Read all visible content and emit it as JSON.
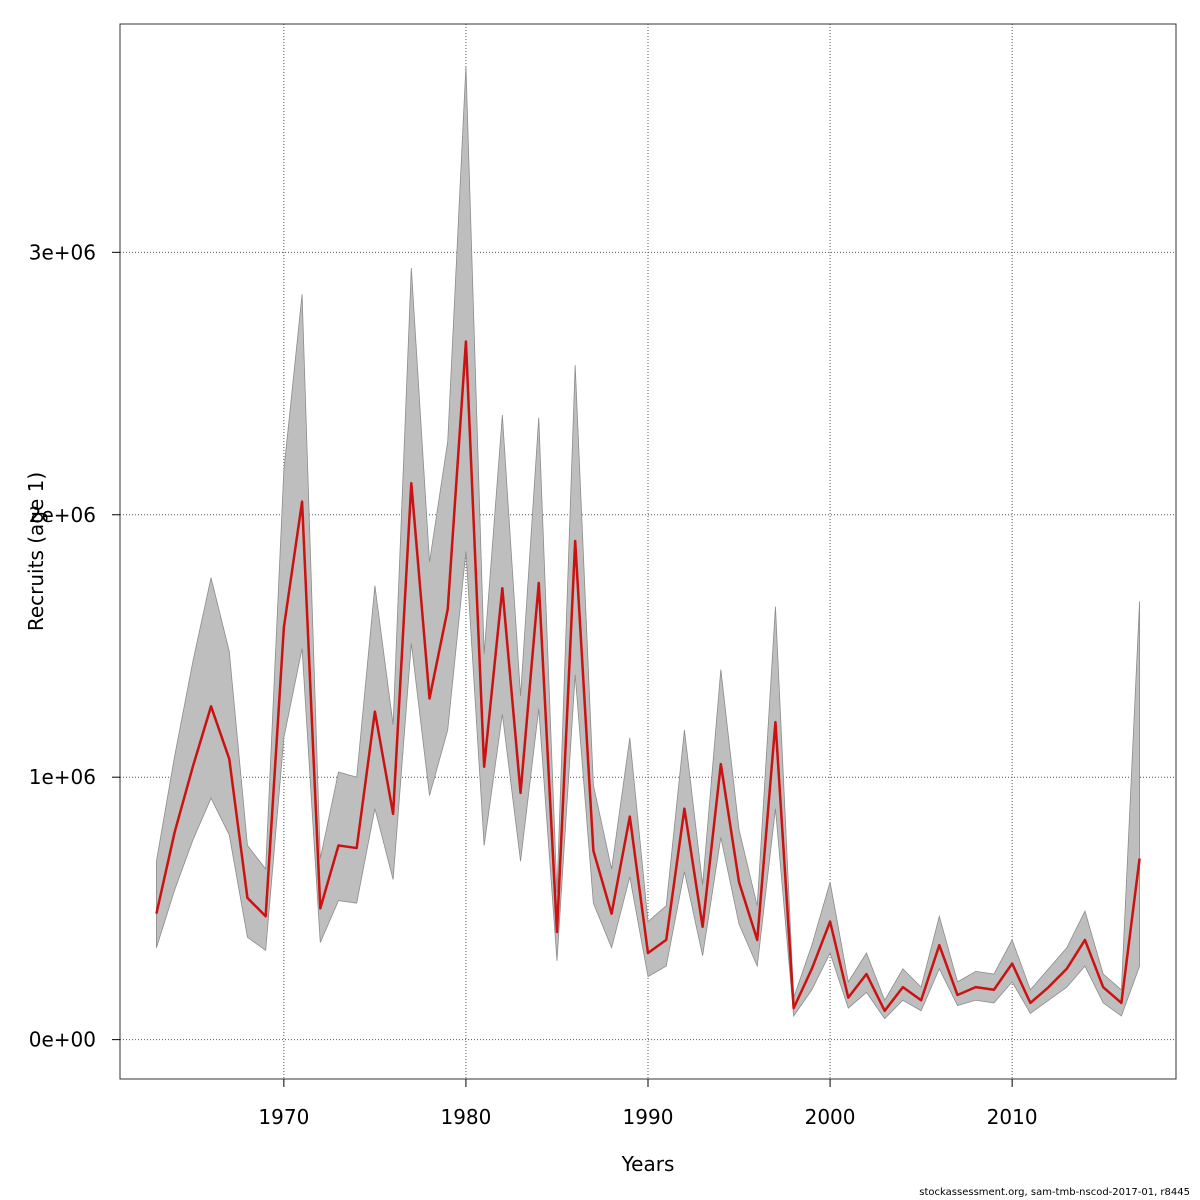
{
  "chart_data": {
    "type": "line",
    "xlabel": "Years",
    "ylabel": "Recruits (age 1)",
    "xlim": [
      1961,
      2019
    ],
    "ylim": [
      -150000,
      3870000
    ],
    "x_ticks": [
      1970,
      1980,
      1990,
      2000,
      2010
    ],
    "x_tick_labels": [
      "1970",
      "1980",
      "1990",
      "2000",
      "2010"
    ],
    "y_ticks": [
      0,
      1000000,
      2000000,
      3000000
    ],
    "y_tick_labels": [
      "0e+00",
      "1e+06",
      "2e+06",
      "3e+06"
    ],
    "grid": true,
    "colors": {
      "line": "#cc1111",
      "band": "#bebebe",
      "band_edge": "#8c8c8c",
      "grid": "#555555",
      "frame": "#333333"
    },
    "x": [
      1963,
      1964,
      1965,
      1966,
      1967,
      1968,
      1969,
      1970,
      1971,
      1972,
      1973,
      1974,
      1975,
      1976,
      1977,
      1978,
      1979,
      1980,
      1981,
      1982,
      1983,
      1984,
      1985,
      1986,
      1987,
      1988,
      1989,
      1990,
      1991,
      1992,
      1993,
      1994,
      1995,
      1996,
      1997,
      1998,
      1999,
      2000,
      2001,
      2002,
      2003,
      2004,
      2005,
      2006,
      2007,
      2008,
      2009,
      2010,
      2011,
      2012,
      2013,
      2014,
      2015,
      2016,
      2017
    ],
    "series": [
      {
        "values": [
          480000,
          790000,
          1040000,
          1270000,
          1070000,
          540000,
          470000,
          1570000,
          2050000,
          500000,
          740000,
          730000,
          1250000,
          860000,
          2120000,
          1300000,
          1640000,
          2660000,
          1040000,
          1720000,
          940000,
          1740000,
          410000,
          1900000,
          720000,
          480000,
          850000,
          330000,
          380000,
          880000,
          430000,
          1050000,
          600000,
          380000,
          1210000,
          120000,
          270000,
          450000,
          160000,
          250000,
          110000,
          200000,
          150000,
          360000,
          170000,
          200000,
          190000,
          290000,
          140000,
          200000,
          270000,
          380000,
          200000,
          140000,
          690000
        ],
        "lower": [
          350000,
          570000,
          760000,
          920000,
          780000,
          390000,
          340000,
          1150000,
          1490000,
          370000,
          530000,
          520000,
          880000,
          610000,
          1510000,
          930000,
          1180000,
          1860000,
          740000,
          1240000,
          680000,
          1260000,
          300000,
          1390000,
          520000,
          350000,
          620000,
          240000,
          280000,
          640000,
          320000,
          770000,
          440000,
          280000,
          880000,
          90000,
          190000,
          330000,
          120000,
          180000,
          80000,
          150000,
          110000,
          270000,
          130000,
          150000,
          140000,
          220000,
          100000,
          150000,
          200000,
          280000,
          140000,
          90000,
          280000
        ],
        "upper": [
          680000,
          1080000,
          1440000,
          1760000,
          1480000,
          740000,
          650000,
          2170000,
          2840000,
          690000,
          1020000,
          1000000,
          1730000,
          1200000,
          2940000,
          1820000,
          2280000,
          3710000,
          1470000,
          2380000,
          1310000,
          2370000,
          560000,
          2570000,
          970000,
          650000,
          1150000,
          450000,
          510000,
          1180000,
          590000,
          1410000,
          800000,
          510000,
          1650000,
          160000,
          360000,
          600000,
          220000,
          330000,
          150000,
          270000,
          200000,
          470000,
          220000,
          260000,
          250000,
          380000,
          190000,
          270000,
          350000,
          490000,
          250000,
          190000,
          1670000
        ]
      }
    ]
  },
  "footer": "stockassessment.org, sam-tmb-nscod-2017-01, r8445"
}
